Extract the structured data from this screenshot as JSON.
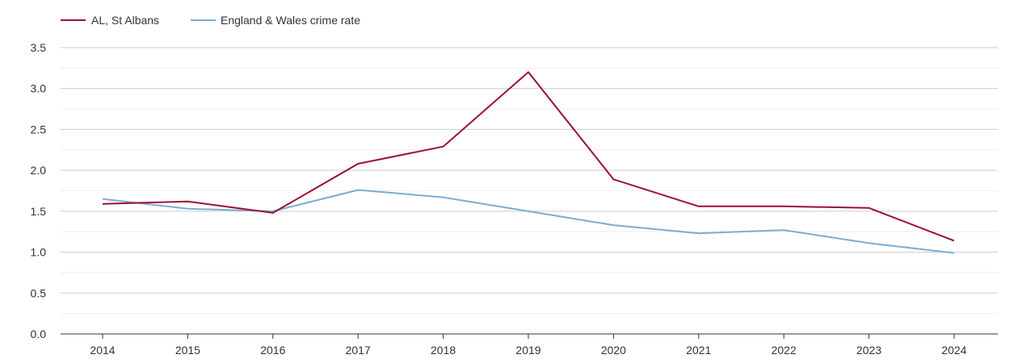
{
  "chart_data": {
    "type": "line",
    "title": "",
    "xlabel": "",
    "ylabel": "",
    "x": [
      "2014",
      "2015",
      "2016",
      "2017",
      "2018",
      "2019",
      "2020",
      "2021",
      "2022",
      "2023",
      "2024"
    ],
    "ylim": [
      0,
      3.5
    ],
    "yticks": [
      "0.0",
      "0.5",
      "1.0",
      "1.5",
      "2.0",
      "2.5",
      "3.0",
      "3.5"
    ],
    "grid": "horizontal",
    "legend_position": "top-left",
    "series": [
      {
        "name": "AL, St Albans",
        "color": "#9b0f35",
        "values": [
          1.59,
          1.62,
          1.48,
          2.08,
          2.29,
          3.2,
          1.89,
          1.56,
          1.56,
          1.54,
          1.14
        ]
      },
      {
        "name": "England & Wales crime rate",
        "color": "#7aadd2",
        "values": [
          1.65,
          1.53,
          1.5,
          1.76,
          1.67,
          1.5,
          1.33,
          1.23,
          1.27,
          1.11,
          0.99
        ]
      }
    ]
  }
}
